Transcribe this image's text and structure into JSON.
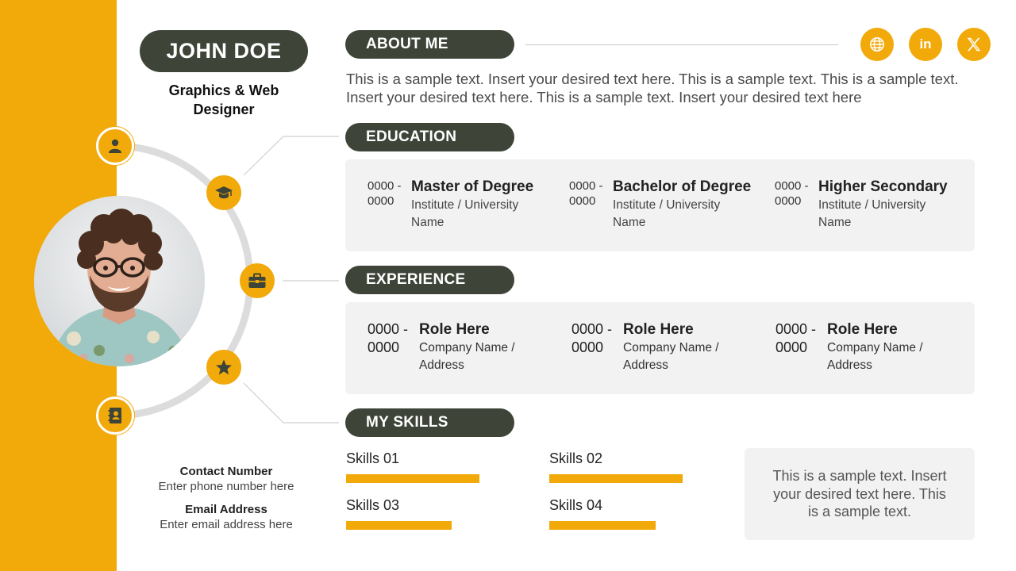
{
  "colors": {
    "accent": "#f2a90a",
    "dark": "#3e4438",
    "card": "#f2f2f2"
  },
  "profile": {
    "name": "JOHN DOE",
    "title": "Graphics & Web Designer"
  },
  "nodes": [
    {
      "icon": "person-icon"
    },
    {
      "icon": "graduation-cap-icon"
    },
    {
      "icon": "briefcase-icon"
    },
    {
      "icon": "star-icon"
    },
    {
      "icon": "address-book-icon"
    }
  ],
  "social": [
    {
      "icon": "globe-icon"
    },
    {
      "icon": "linkedin-icon",
      "label": "in"
    },
    {
      "icon": "x-icon"
    }
  ],
  "about": {
    "heading": "ABOUT ME",
    "text": "This is a sample text. Insert your desired text here. This is a sample text. This is a sample text. Insert your desired text here. This is a sample text. Insert your desired text here"
  },
  "education": {
    "heading": "EDUCATION",
    "items": [
      {
        "date": "0000 - 0000",
        "degree": "Master of Degree",
        "institute": "Institute / University Name"
      },
      {
        "date": "0000 - 0000",
        "degree": "Bachelor of Degree",
        "institute": "Institute / University Name"
      },
      {
        "date": "0000 - 0000",
        "degree": "Higher Secondary",
        "institute": "Institute / University Name"
      }
    ]
  },
  "experience": {
    "heading": "EXPERIENCE",
    "items": [
      {
        "date": "0000 - 0000",
        "role": "Role Here",
        "company": "Company Name / Address"
      },
      {
        "date": "0000 - 0000",
        "role": "Role Here",
        "company": "Company Name / Address"
      },
      {
        "date": "0000 - 0000",
        "role": "Role Here",
        "company": "Company Name / Address"
      }
    ]
  },
  "skills": {
    "heading": "MY SKILLS",
    "items": [
      {
        "label": "Skills 01",
        "level": 0.99
      },
      {
        "label": "Skills 02",
        "level": 0.99
      },
      {
        "label": "Skills 03",
        "level": 0.78
      },
      {
        "label": "Skills 04",
        "level": 0.79
      }
    ],
    "note": "This is a sample text. Insert your desired text here. This is a sample text."
  },
  "contact": {
    "phone_label": "Contact Number",
    "phone_value": "Enter phone number here",
    "email_label": "Email Address",
    "email_value": "Enter email address here"
  }
}
